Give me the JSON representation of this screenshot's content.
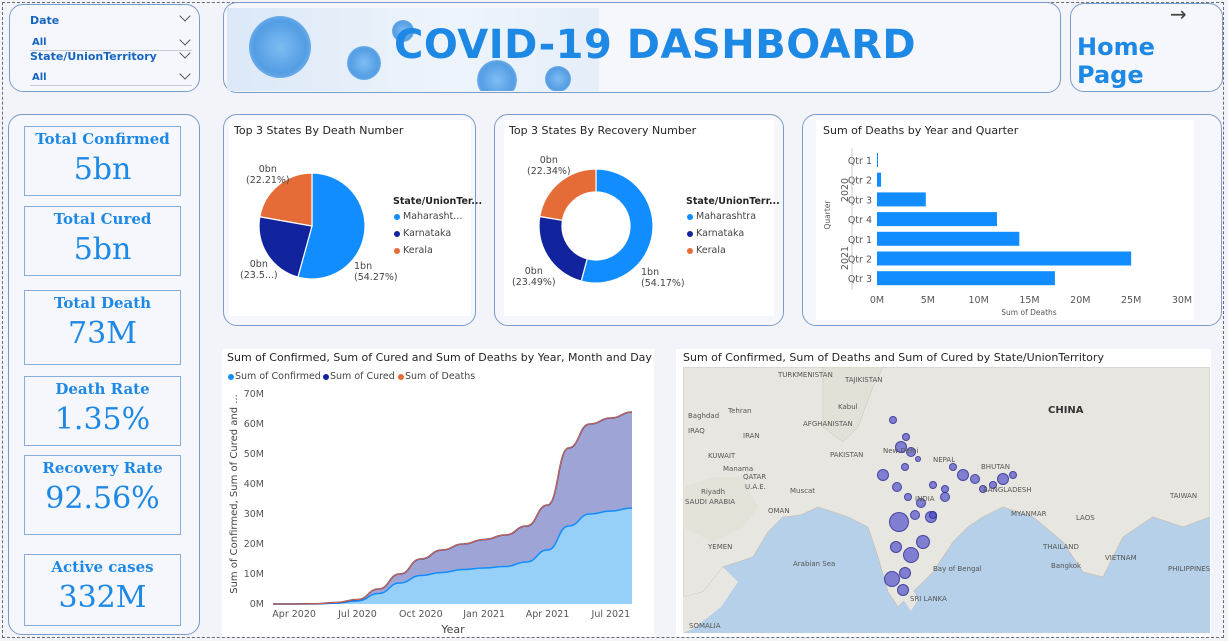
{
  "filters": {
    "date_label": "Date",
    "date_value": "All",
    "state_label": "State/UnionTerritory",
    "state_value": "All"
  },
  "header": {
    "title": "COVID-19 DASHBOARD",
    "home_label": "Home Page"
  },
  "kpis": [
    {
      "label": "Total Confirmed",
      "value": "5bn"
    },
    {
      "label": "Total Cured",
      "value": "5bn"
    },
    {
      "label": "Total Death",
      "value": "73M"
    },
    {
      "label": "Death Rate",
      "value": "1.35%"
    },
    {
      "label": "Recovery Rate",
      "value": "92.56%"
    },
    {
      "label": "Active cases",
      "value": "332M"
    }
  ],
  "pie_deaths": {
    "title": "Top 3 States By Death Number",
    "legend_title": "State/UnionTer...",
    "legend": [
      "Maharasht...",
      "Karnataka",
      "Kerala"
    ],
    "labels": [
      {
        "value": "1bn",
        "pct": "(54.27%)"
      },
      {
        "value": "0bn",
        "pct": "(23.5...)"
      },
      {
        "value": "0bn",
        "pct": "(22.21%)"
      }
    ]
  },
  "donut_recovery": {
    "title": "Top 3 States By Recovery Number",
    "legend_title": "State/UnionTerr...",
    "legend": [
      "Maharashtra",
      "Karnataka",
      "Kerala"
    ],
    "labels": [
      {
        "value": "1bn",
        "pct": "(54.17%)"
      },
      {
        "value": "0bn",
        "pct": "(23.49%)"
      },
      {
        "value": "0bn",
        "pct": "(22.34%)"
      }
    ]
  },
  "bar_deaths": {
    "title": "Sum of Deaths by Year and Quarter",
    "xlabel": "Sum of Deaths",
    "ylabel": "Quarter",
    "years": [
      "2020",
      "2021"
    ]
  },
  "area_chart": {
    "title": "Sum of Confirmed, Sum of Cured and Sum of Deaths by Year, Month and Day",
    "legend": [
      "Sum of Confirmed",
      "Sum of Cured",
      "Sum of Deaths"
    ],
    "ylabel": "Sum of Confirmed, Sum of Cured and ...",
    "xlabel": "Year"
  },
  "map": {
    "title": "Sum of Confirmed, Sum of Deaths and Sum of Cured by State/UnionTerritory",
    "labels": [
      {
        "text": "TURKMENISTAN"
      },
      {
        "text": "TAJIKISTAN"
      },
      {
        "text": "Tehran"
      },
      {
        "text": "Baghdad"
      },
      {
        "text": "IRAQ"
      },
      {
        "text": "IRAN"
      },
      {
        "text": "AFGHANISTAN"
      },
      {
        "text": "Kabul"
      },
      {
        "text": "PAKISTAN"
      },
      {
        "text": "KUWAIT"
      },
      {
        "text": "Manama"
      },
      {
        "text": "QATAR"
      },
      {
        "text": "Riyadh"
      },
      {
        "text": "SAUDI ARABIA"
      },
      {
        "text": "U.A.E."
      },
      {
        "text": "Muscat"
      },
      {
        "text": "OMAN"
      },
      {
        "text": "YEMEN"
      },
      {
        "text": "CHINA"
      },
      {
        "text": "New Delhi"
      },
      {
        "text": "NEPAL"
      },
      {
        "text": "BHUTAN"
      },
      {
        "text": "INDIA"
      },
      {
        "text": "BANGLADESH"
      },
      {
        "text": "MYANMAR"
      },
      {
        "text": "LAOS"
      },
      {
        "text": "THAILAND"
      },
      {
        "text": "Bangkok"
      },
      {
        "text": "VIETNAM"
      },
      {
        "text": "TAIWAN"
      },
      {
        "text": "PHILIPPINES"
      },
      {
        "text": "SRI LANKA"
      },
      {
        "text": "SOMALIA"
      },
      {
        "text": "Arabian Sea"
      },
      {
        "text": "Bay of Bengal"
      }
    ]
  },
  "chart_data": [
    {
      "type": "pie",
      "title": "Top 3 States By Death Number",
      "categories": [
        "Maharashtra",
        "Karnataka",
        "Kerala"
      ],
      "values": [
        54.27,
        23.5,
        22.21
      ],
      "colors": [
        "#118dff",
        "#12239e",
        "#e66c37"
      ]
    },
    {
      "type": "pie",
      "title": "Top 3 States By Recovery Number",
      "categories": [
        "Maharashtra",
        "Karnataka",
        "Kerala"
      ],
      "values": [
        54.17,
        23.49,
        22.34
      ],
      "colors": [
        "#118dff",
        "#12239e",
        "#e66c37"
      ]
    },
    {
      "type": "bar",
      "title": "Sum of Deaths by Year and Quarter",
      "categories": [
        "Qtr 1",
        "Qtr 2",
        "Qtr 3",
        "Qtr 4",
        "Qtr 1",
        "Qtr 2",
        "Qtr 3"
      ],
      "values": [
        0.05,
        0.4,
        4.8,
        11.8,
        14,
        25,
        17.5
      ],
      "xticks": [
        "0M",
        "5M",
        "10M",
        "15M",
        "20M",
        "25M",
        "30M"
      ],
      "xlim": [
        0,
        30
      ],
      "xlabel": "Sum of Deaths",
      "ylabel": "Quarter"
    },
    {
      "type": "area",
      "title": "Sum of Confirmed, Sum of Cured and Sum of Deaths by Year, Month and Day",
      "x": [
        "Mar 2020",
        "Apr 2020",
        "May 2020",
        "Jun 2020",
        "Jul 2020",
        "Aug 2020",
        "Sep 2020",
        "Oct 2020",
        "Nov 2020",
        "Dec 2020",
        "Jan 2021",
        "Feb 2021",
        "Mar 2021",
        "Apr 2021",
        "May 2021",
        "Jun 2021",
        "Jul 2021",
        "Aug 2021"
      ],
      "series": [
        {
          "name": "Sum of Confirmed",
          "values": [
            0,
            0,
            0.1,
            0.5,
            1.5,
            5,
            10,
            15,
            18,
            20,
            21.5,
            23,
            26,
            33,
            52,
            60,
            62,
            64
          ]
        },
        {
          "name": "Sum of Cured",
          "values": [
            0,
            0,
            0.05,
            0.3,
            1,
            3.5,
            7,
            9.5,
            10.5,
            11.5,
            12,
            12.5,
            14,
            18,
            26,
            30,
            31,
            32
          ]
        },
        {
          "name": "Sum of Deaths",
          "values": [
            0,
            0,
            0.1,
            0.5,
            1.5,
            5,
            10,
            15,
            18,
            20,
            21.5,
            23,
            26,
            33,
            52,
            60,
            62,
            64
          ]
        }
      ],
      "yticks": [
        "0M",
        "10M",
        "20M",
        "30M",
        "40M",
        "50M",
        "60M",
        "70M"
      ],
      "xticks": [
        "Apr 2020",
        "Jul 2020",
        "Oct 2020",
        "Jan 2021",
        "Apr 2021",
        "Jul 2021"
      ],
      "ylim": [
        0,
        70
      ],
      "colors": [
        "#118dff",
        "#12239e",
        "#e66c37"
      ]
    }
  ]
}
